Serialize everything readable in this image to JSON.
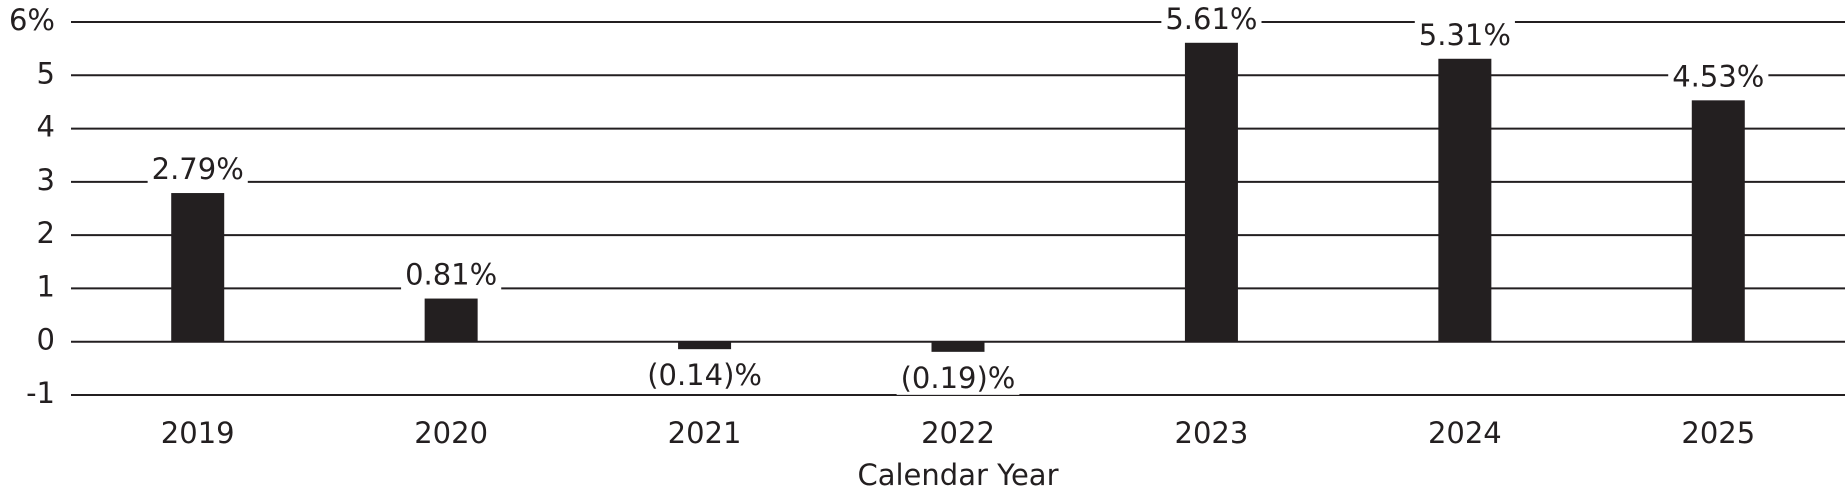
{
  "chart_data": {
    "type": "bar",
    "x_label": "Calendar Year",
    "categories": [
      "2019",
      "2020",
      "2021",
      "2022",
      "2023",
      "2024",
      "2025"
    ],
    "values": [
      2.79,
      0.81,
      -0.14,
      -0.19,
      5.61,
      5.31,
      4.53
    ],
    "value_labels": [
      "2.79%",
      "0.81%",
      "(0.14)%",
      "(0.19)%",
      "5.61%",
      "5.31%",
      "4.53%"
    ],
    "color": "#231f20",
    "ylim": [
      -1,
      6
    ],
    "yticks": [
      {
        "value": 6,
        "label": "6%"
      },
      5,
      4,
      3,
      2,
      1,
      0,
      -1
    ],
    "grid": true
  }
}
